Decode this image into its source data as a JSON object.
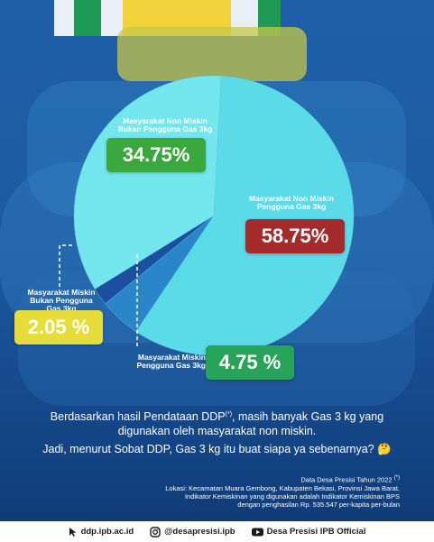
{
  "chart_data": {
    "type": "pie",
    "slices": [
      {
        "label": "Masyarakat Non Miskin Pengguna Gas 3kg",
        "value": 58.75,
        "display": "58.75%",
        "color": "#5bdbe8",
        "badge_color": "#a52a2a"
      },
      {
        "label": "Masyarakat Miskin Pengguna Gas 3kg",
        "value": 4.75,
        "display": "4.75 %",
        "color": "#2a86c8",
        "badge_color": "#27a35a"
      },
      {
        "label": "Masyarakat Miskin Bukan Pengguna Gas 3kg",
        "value": 2.05,
        "display": "2.05 %",
        "color": "#1c4fa0",
        "badge_color": "#e6dc3a"
      },
      {
        "label": "Masyarakat Non Miskin Bukan Pengguna Gas 3kg",
        "value": 34.75,
        "display": "34.75%",
        "color": "#74e6ee",
        "badge_color": "#3aa83c"
      }
    ]
  },
  "labels": {
    "nonmiskin_bukan": [
      "Masyarakat Non Miskin",
      "Bukan Pengguna Gas 3kg"
    ],
    "nonmiskin_pengguna": [
      "Masyarakat Non Miskin",
      "Pengguna Gas 3kg"
    ],
    "miskin_bukan": [
      "Masyarakat Miskin",
      "Bukan Pengguna",
      "Gas 3kg"
    ],
    "miskin_pengguna": [
      "Masyarakat Miskin",
      "Pengguna Gas 3kg"
    ]
  },
  "body": {
    "line1a": "Berdasarkan hasil Pendataan DDP",
    "sup": "(*)",
    "line1b": ", masih banyak Gas 3 kg yang",
    "line2": "digunakan oleh masyarakat non miskin.",
    "line3": "Jadi, menurut Sobat DDP, Gas 3 kg itu buat siapa ya sebenarnya?",
    "emoji": "🤔"
  },
  "footnote": {
    "title": "Data Desa Presisi Tahun 2022",
    "title_mark": "(*)",
    "lines": [
      "Lokasi: Kecamatan Muara Gembong, Kabupaten Bekasi, Provinsi Jawa Barat.",
      "Indikator Kemiskinan yang digunakan adalah Indikator Kemiskinan BPS",
      "dengan penghasilan Rp. 535.547 per-kapita per-bulan"
    ]
  },
  "footer": {
    "website": "ddp.ipb.ac.id",
    "instagram": "@desapresisi.ipb",
    "youtube": "Desa Presisi IPB Official"
  }
}
